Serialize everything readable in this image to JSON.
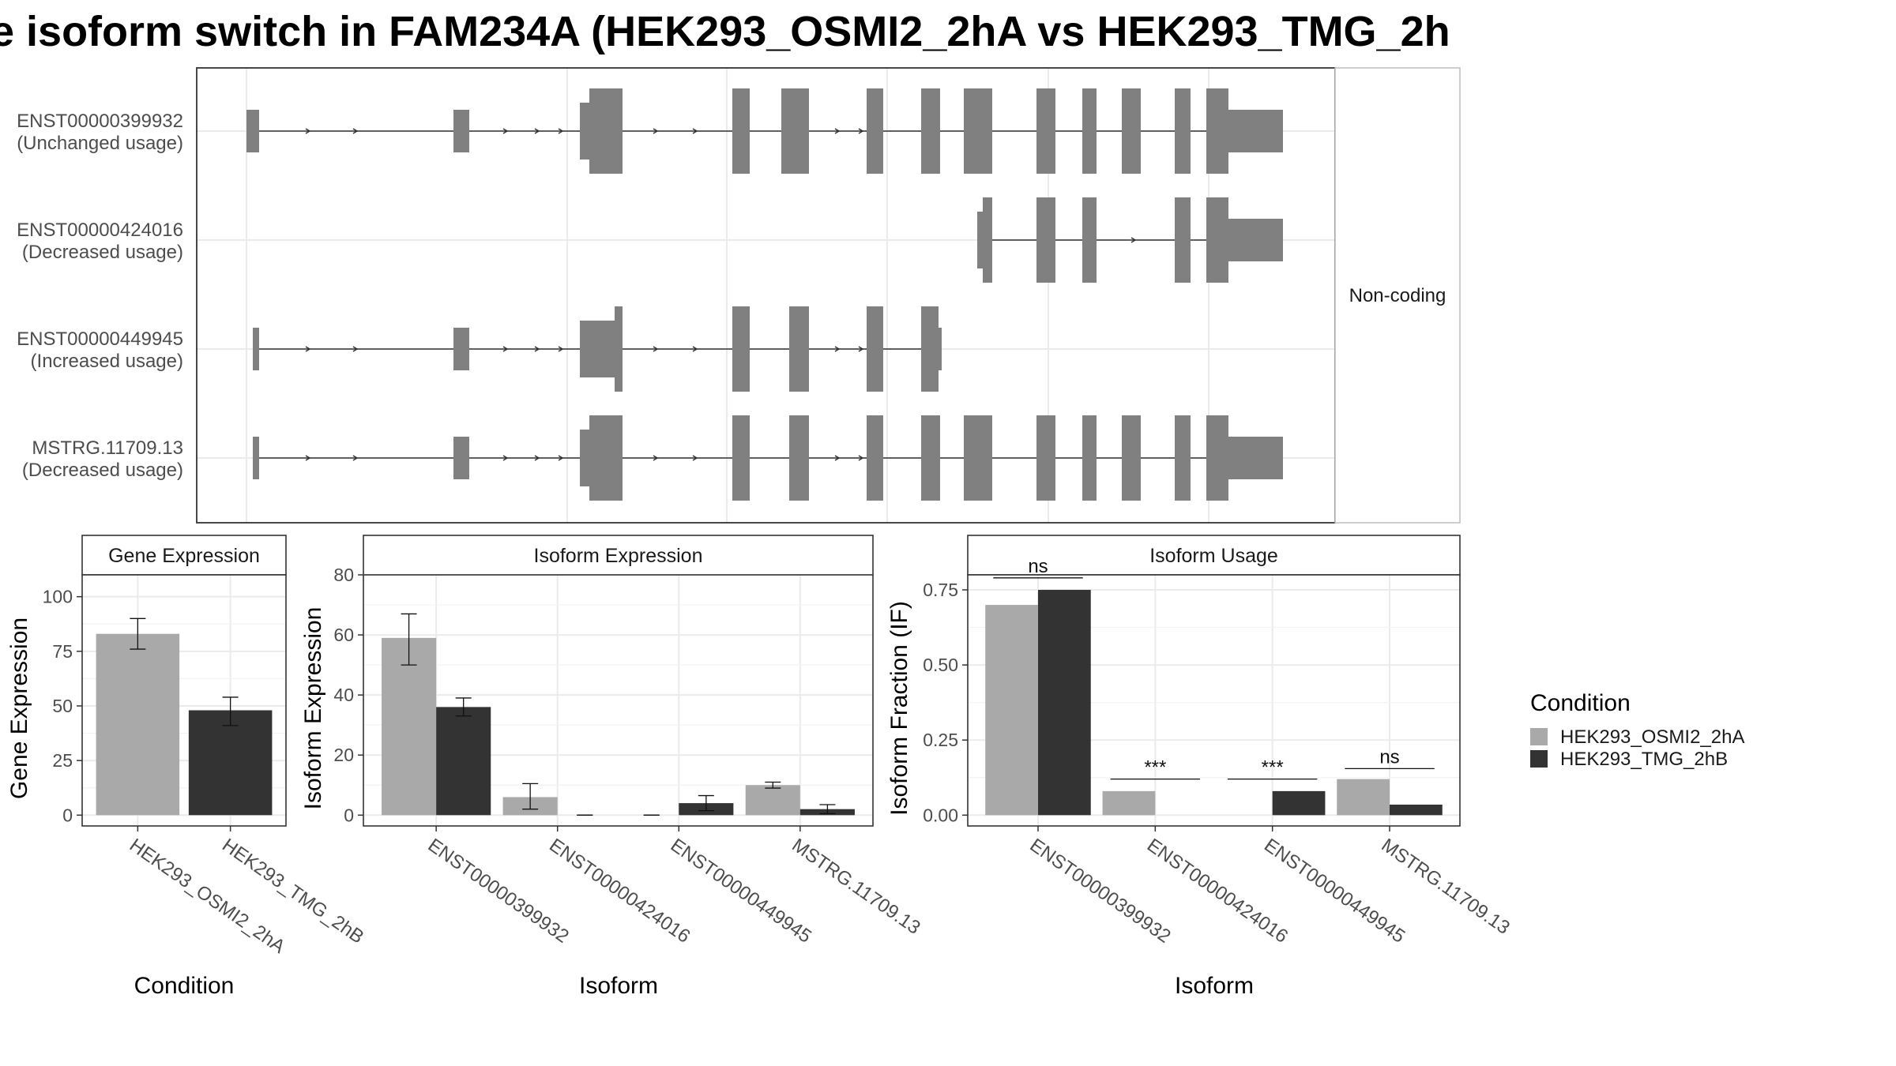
{
  "title": "e isoform switch in FAM234A (HEK293_OSMI2_2hA vs HEK293_TMG_2h",
  "colors": {
    "cond_a": "#a9a9a9",
    "cond_b": "#333333",
    "exon": "#808080",
    "grid": "#ebebeb",
    "frame": "#333333",
    "strip": "#ffffff"
  },
  "structure": {
    "strip_label": "Non-coding",
    "transcripts": [
      {
        "id": "ENST00000399932",
        "usage": "(Unchanged usage)"
      },
      {
        "id": "ENST00000424016",
        "usage": "(Decreased usage)"
      },
      {
        "id": "ENST00000449945",
        "usage": "(Increased usage)"
      },
      {
        "id": "MSTRG.11709.13",
        "usage": "(Decreased usage)"
      }
    ]
  },
  "legend": {
    "title": "Condition",
    "items": [
      "HEK293_OSMI2_2hA",
      "HEK293_TMG_2hB"
    ]
  },
  "chart_data": [
    {
      "type": "bar",
      "title": "Gene Expression",
      "xlabel": "Condition",
      "ylabel": "Gene Expression",
      "ylim": [
        0,
        110
      ],
      "yticks": [
        0,
        25,
        50,
        75,
        100
      ],
      "categories": [
        "HEK293_OSMI2_2hA",
        "HEK293_TMG_2hB"
      ],
      "series": [
        {
          "values": [
            83,
            null
          ],
          "errors": [
            [
              76,
              90
            ],
            null
          ]
        },
        {
          "values": [
            null,
            48
          ],
          "errors": [
            null,
            [
              41,
              54
            ]
          ]
        }
      ]
    },
    {
      "type": "bar",
      "title": "Isoform Expression",
      "xlabel": "Isoform",
      "ylabel": "Isoform Expression",
      "ylim": [
        0,
        80
      ],
      "yticks": [
        0,
        20,
        40,
        60,
        80
      ],
      "categories": [
        "ENST00000399932",
        "ENST00000424016",
        "ENST00000449945",
        "MSTRG.11709.13"
      ],
      "series": [
        {
          "name": "HEK293_OSMI2_2hA",
          "values": [
            59,
            6,
            0,
            10
          ],
          "errors": [
            [
              50,
              67
            ],
            [
              2,
              10.5
            ],
            [
              0,
              0
            ],
            [
              9,
              11
            ]
          ]
        },
        {
          "name": "HEK293_TMG_2hB",
          "values": [
            36,
            0,
            4,
            2
          ],
          "errors": [
            [
              33,
              39
            ],
            [
              0,
              0
            ],
            [
              1.5,
              6.5
            ],
            [
              0.5,
              3.5
            ]
          ]
        }
      ]
    },
    {
      "type": "bar",
      "title": "Isoform Usage",
      "xlabel": "Isoform",
      "ylabel": "Isoform Fraction (IF)",
      "ylim": [
        0,
        0.8
      ],
      "yticks": [
        0.0,
        0.25,
        0.5,
        0.75
      ],
      "ytick_labels": [
        "0.00",
        "0.25",
        "0.50",
        "0.75"
      ],
      "categories": [
        "ENST00000399932",
        "ENST00000424016",
        "ENST00000449945",
        "MSTRG.11709.13"
      ],
      "series": [
        {
          "name": "HEK293_OSMI2_2hA",
          "values": [
            0.7,
            0.08,
            0.0,
            0.12
          ]
        },
        {
          "name": "HEK293_TMG_2hB",
          "values": [
            0.75,
            0.0,
            0.08,
            0.035
          ]
        }
      ],
      "significance": [
        {
          "label": "ns",
          "y": 0.79
        },
        {
          "label": "***",
          "y": 0.12
        },
        {
          "label": "***",
          "y": 0.12
        },
        {
          "label": "ns",
          "y": 0.155
        }
      ]
    }
  ]
}
